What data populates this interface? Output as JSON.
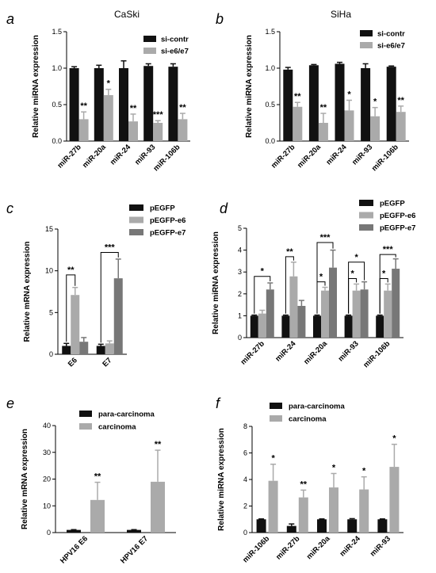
{
  "chart_data": [
    {
      "panel": "a",
      "title": "CaSki",
      "type": "bar",
      "ylabel": "Relative miRNA expression",
      "ylim": [
        0,
        1.5
      ],
      "yticks": [
        0,
        0.5,
        1.0,
        1.5
      ],
      "ytick_labels": [
        "0.0",
        "0.5",
        "1.0",
        "1.5"
      ],
      "categories": [
        "miR-27b",
        "miR-20a",
        "miR-24",
        "miR-93",
        "miR-106b"
      ],
      "legend_position": "top-right",
      "series": [
        {
          "name": "si-contr",
          "color": "#111111",
          "values": [
            1.0,
            1.0,
            1.0,
            1.03,
            1.02
          ],
          "errors": [
            0.02,
            0.04,
            0.1,
            0.03,
            0.04
          ]
        },
        {
          "name": "si-e6/e7",
          "color": "#aaaaaa",
          "values": [
            0.3,
            0.63,
            0.27,
            0.25,
            0.3
          ],
          "errors": [
            0.1,
            0.08,
            0.1,
            0.03,
            0.08
          ]
        }
      ],
      "significance": [
        {
          "category": 0,
          "text": "**"
        },
        {
          "category": 1,
          "text": "*"
        },
        {
          "category": 2,
          "text": "**"
        },
        {
          "category": 3,
          "text": "***"
        },
        {
          "category": 4,
          "text": "**"
        }
      ]
    },
    {
      "panel": "b",
      "title": "SiHa",
      "type": "bar",
      "ylabel": "Relative miRNA expression",
      "ylim": [
        0,
        1.5
      ],
      "yticks": [
        0,
        0.5,
        1.0,
        1.5
      ],
      "ytick_labels": [
        "0.0",
        "0.5",
        "1.0",
        "1.5"
      ],
      "categories": [
        "miR-27b",
        "miR-20a",
        "miR-24",
        "miR-93",
        "miR-106b"
      ],
      "legend_position": "top-right",
      "series": [
        {
          "name": "si-contr",
          "color": "#111111",
          "values": [
            0.98,
            1.04,
            1.06,
            1.0,
            1.02
          ],
          "errors": [
            0.03,
            0.01,
            0.02,
            0.06,
            0.01
          ]
        },
        {
          "name": "si-e6/e7",
          "color": "#aaaaaa",
          "values": [
            0.47,
            0.25,
            0.42,
            0.34,
            0.4
          ],
          "errors": [
            0.06,
            0.13,
            0.14,
            0.12,
            0.08
          ]
        }
      ],
      "significance": [
        {
          "category": 0,
          "text": "**"
        },
        {
          "category": 1,
          "text": "**"
        },
        {
          "category": 2,
          "text": "*"
        },
        {
          "category": 3,
          "text": "*"
        },
        {
          "category": 4,
          "text": "**"
        }
      ]
    },
    {
      "panel": "c",
      "type": "bar",
      "ylabel": "Relative mRNA expression",
      "ylim": [
        0,
        15
      ],
      "yticks": [
        0,
        5,
        10,
        15
      ],
      "ytick_labels": [
        "0",
        "5",
        "10",
        "15"
      ],
      "categories": [
        "E6",
        "E7"
      ],
      "legend_position": "top-right",
      "series": [
        {
          "name": "pEGFP",
          "color": "#111111",
          "values": [
            1.0,
            1.0
          ],
          "errors": [
            0.3,
            0.2
          ]
        },
        {
          "name": "pEGFP-e6",
          "color": "#aaaaaa",
          "values": [
            7.1,
            1.3
          ],
          "errors": [
            0.9,
            0.3
          ]
        },
        {
          "name": "pEGFP-e7",
          "color": "#777777",
          "values": [
            1.5,
            9.1
          ],
          "errors": [
            0.5,
            2.3
          ]
        }
      ],
      "brackets": [
        {
          "category": 0,
          "from": 0,
          "to": 1,
          "level": 9.5,
          "text": "**"
        },
        {
          "category": 1,
          "from": 0,
          "to": 2,
          "level": 12.2,
          "text": "***"
        }
      ]
    },
    {
      "panel": "d",
      "type": "bar",
      "ylabel": "Relative miRNA expression",
      "ylim": [
        0,
        5
      ],
      "yticks": [
        0,
        1,
        2,
        3,
        4,
        5
      ],
      "ytick_labels": [
        "0",
        "1",
        "2",
        "3",
        "4",
        "5"
      ],
      "categories": [
        "miR-27b",
        "miR-24",
        "miR-20a",
        "miR-93",
        "miR-106b"
      ],
      "legend_position": "top-right",
      "series": [
        {
          "name": "pEGFP",
          "color": "#111111",
          "values": [
            1.0,
            1.0,
            1.0,
            1.0,
            1.0
          ],
          "errors": [
            0.03,
            0.03,
            0.03,
            0.03,
            0.03
          ]
        },
        {
          "name": "pEGFP-e6",
          "color": "#aaaaaa",
          "values": [
            1.1,
            2.8,
            2.15,
            2.15,
            2.15
          ],
          "errors": [
            0.15,
            0.65,
            0.15,
            0.3,
            0.3
          ]
        },
        {
          "name": "pEGFP-e7",
          "color": "#777777",
          "values": [
            2.2,
            1.45,
            3.2,
            2.2,
            3.15
          ],
          "errors": [
            0.3,
            0.25,
            0.8,
            0.35,
            0.45
          ]
        }
      ],
      "brackets": [
        {
          "category": 0,
          "from": 0,
          "to": 2,
          "level": 2.8,
          "text": "*"
        },
        {
          "category": 1,
          "from": 0,
          "to": 1,
          "level": 3.7,
          "text": "**"
        },
        {
          "category": 2,
          "from": 0,
          "to": 1,
          "level": 2.55,
          "text": "*"
        },
        {
          "category": 2,
          "from": 0,
          "to": 2,
          "level": 4.35,
          "text": "***"
        },
        {
          "category": 3,
          "from": 0,
          "to": 1,
          "level": 2.7,
          "text": "*"
        },
        {
          "category": 3,
          "from": 0,
          "to": 2,
          "level": 3.45,
          "text": "*"
        },
        {
          "category": 4,
          "from": 0,
          "to": 1,
          "level": 2.7,
          "text": "*"
        },
        {
          "category": 4,
          "from": 0,
          "to": 2,
          "level": 3.8,
          "text": "***"
        }
      ]
    },
    {
      "panel": "e",
      "type": "bar",
      "ylabel": "Relative mRNA expression",
      "ylim": [
        0,
        40
      ],
      "yticks": [
        0,
        10,
        20,
        30,
        40
      ],
      "ytick_labels": [
        "0",
        "10",
        "20",
        "30",
        "40"
      ],
      "categories": [
        "HPV16 E6",
        "HPV16 E7"
      ],
      "legend_position": "top-left",
      "series": [
        {
          "name": "para-carcinoma",
          "color": "#111111",
          "values": [
            1.0,
            1.0
          ],
          "errors": [
            0.1,
            0.1
          ]
        },
        {
          "name": "carcinoma",
          "color": "#aaaaaa",
          "values": [
            12.2,
            19.0
          ],
          "errors": [
            6.6,
            11.8
          ]
        }
      ],
      "significance": [
        {
          "category": 0,
          "text": "**"
        },
        {
          "category": 1,
          "text": "**"
        }
      ]
    },
    {
      "panel": "f",
      "type": "bar",
      "ylabel": "Relative miRNA expression",
      "ylim": [
        0,
        8
      ],
      "yticks": [
        0,
        2,
        4,
        6,
        8
      ],
      "ytick_labels": [
        "0",
        "2",
        "4",
        "6",
        "8"
      ],
      "categories": [
        "miR-106b",
        "miR-27b",
        "miR-20a",
        "miR-24",
        "miR-93"
      ],
      "legend_position": "top-right",
      "series": [
        {
          "name": "para-carcinoma",
          "color": "#111111",
          "values": [
            1.0,
            0.5,
            1.0,
            1.0,
            1.0
          ],
          "errors": [
            0.03,
            0.15,
            0.03,
            0.05,
            0.03
          ]
        },
        {
          "name": "carcinoma",
          "color": "#aaaaaa",
          "values": [
            3.9,
            2.65,
            3.4,
            3.25,
            4.95
          ],
          "errors": [
            1.25,
            0.55,
            1.05,
            0.95,
            1.7
          ]
        }
      ],
      "significance": [
        {
          "category": 0,
          "text": "*"
        },
        {
          "category": 1,
          "text": "**"
        },
        {
          "category": 2,
          "text": "*"
        },
        {
          "category": 3,
          "text": "*"
        },
        {
          "category": 4,
          "text": "*"
        }
      ]
    }
  ]
}
